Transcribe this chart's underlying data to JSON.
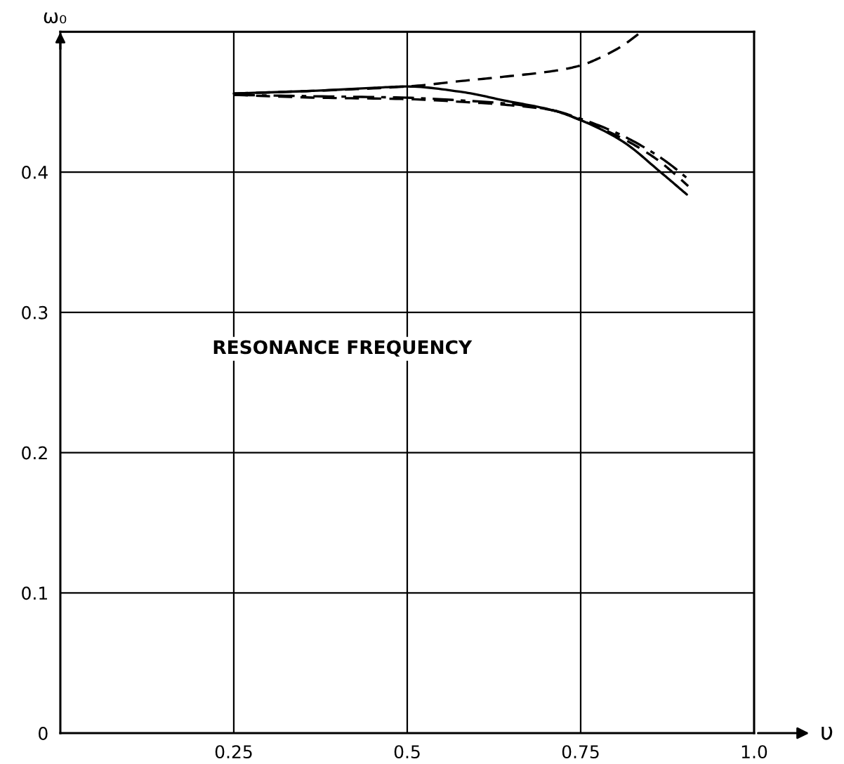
{
  "chart_data": {
    "type": "line",
    "xlabel": "υ",
    "ylabel": "ω₀",
    "annotations": [
      "RESONANCE FREQUENCY"
    ],
    "xlim": [
      0,
      1.0
    ],
    "ylim": [
      0,
      0.5
    ],
    "xticks": [
      0.25,
      0.5,
      0.75,
      {
        "value": 1.0,
        "label": "1.0"
      }
    ],
    "yticks": [
      0,
      0.1,
      0.2,
      0.3,
      0.4,
      {
        "value": 0.5,
        "label": null
      }
    ],
    "grid": true,
    "series": [
      {
        "color": "#000000",
        "line_style": "dashed",
        "x": [
          0.25,
          0.37,
          0.5,
          0.58,
          0.64,
          0.71,
          0.75,
          0.78,
          0.81,
          0.835
        ],
        "values": [
          0.456,
          0.458,
          0.461,
          0.465,
          0.468,
          0.472,
          0.476,
          0.482,
          0.49,
          0.499
        ]
      },
      {
        "color": "#000000",
        "line_style": "solid",
        "x": [
          0.25,
          0.37,
          0.45,
          0.5,
          0.58,
          0.64,
          0.71,
          0.75,
          0.81,
          0.865,
          0.903
        ],
        "values": [
          0.456,
          0.458,
          0.46,
          0.461,
          0.457,
          0.451,
          0.444,
          0.437,
          0.422,
          0.4,
          0.384
        ]
      },
      {
        "color": "#000000",
        "line_style": "dashdot",
        "x": [
          0.25,
          0.37,
          0.5,
          0.58,
          0.64,
          0.71,
          0.75,
          0.81,
          0.86,
          0.88,
          0.905
        ],
        "values": [
          0.455,
          0.454,
          0.453,
          0.451,
          0.449,
          0.444,
          0.438,
          0.426,
          0.412,
          0.405,
          0.395
        ]
      },
      {
        "color": "#000000",
        "line_style": "dashed",
        "x": [
          0.25,
          0.37,
          0.5,
          0.58,
          0.64,
          0.71,
          0.75,
          0.81,
          0.86,
          0.88,
          0.905
        ],
        "values": [
          0.455,
          0.453,
          0.452,
          0.45,
          0.448,
          0.444,
          0.437,
          0.424,
          0.409,
          0.401,
          0.39
        ]
      }
    ]
  }
}
